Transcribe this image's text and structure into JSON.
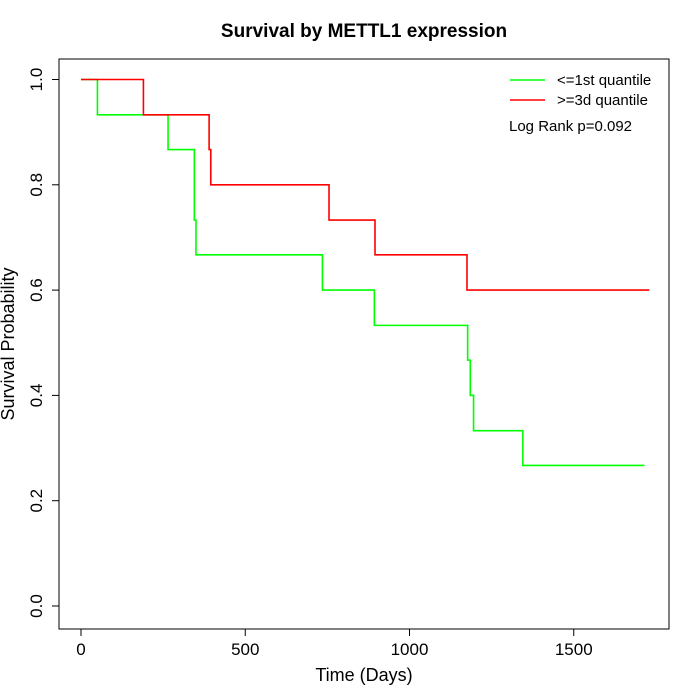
{
  "chart_data": {
    "type": "line",
    "title": "Survival by METTL1 expression",
    "xlabel": "Time (Days)",
    "ylabel": "Survival Probability",
    "xlim": [
      0,
      1800
    ],
    "ylim": [
      0,
      1.0
    ],
    "xticks": [
      0,
      500,
      1000,
      1500
    ],
    "yticks": [
      0.0,
      0.2,
      0.4,
      0.6,
      0.8,
      1.0
    ],
    "xtick_labels": [
      "0",
      "500",
      "1000",
      "1500"
    ],
    "ytick_labels": [
      "0.0",
      "0.2",
      "0.4",
      "0.6",
      "0.8",
      "1.0"
    ],
    "grid": false,
    "legend_position": "top-right",
    "annotation": "Log Rank p=0.092",
    "series": [
      {
        "name": "<=1st quantile",
        "color": "#00ff00",
        "step": true,
        "x": [
          0,
          50,
          265,
          345,
          350,
          735,
          893,
          1177,
          1185,
          1195,
          1345,
          1715
        ],
        "y": [
          1.0,
          0.933,
          0.867,
          0.733,
          0.667,
          0.6,
          0.533,
          0.467,
          0.4,
          0.333,
          0.267,
          0.267
        ]
      },
      {
        "name": ">=3d quantile",
        "color": "#ff0000",
        "step": true,
        "x": [
          0,
          190,
          390,
          395,
          755,
          895,
          1175,
          1730
        ],
        "y": [
          1.0,
          0.933,
          0.867,
          0.8,
          0.733,
          0.667,
          0.6,
          0.6
        ]
      }
    ]
  }
}
